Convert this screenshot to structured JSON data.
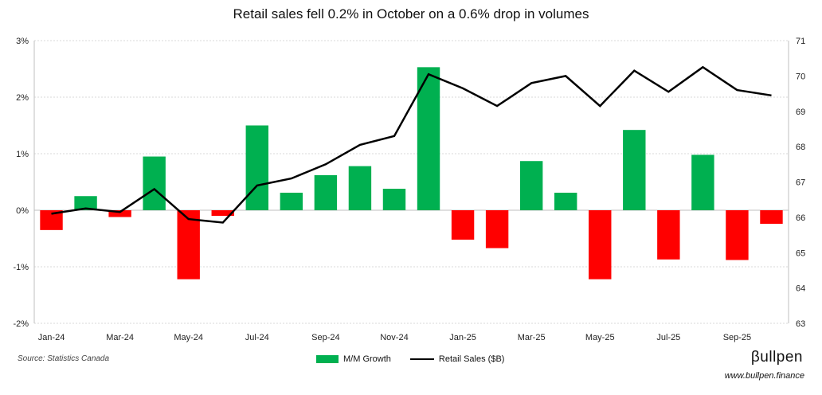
{
  "chart_data": {
    "type": "bar+line",
    "title": "Retail sales fell 0.2% in October on a 0.6% drop in volumes",
    "categories": [
      "Jan-24",
      "Feb-24",
      "Mar-24",
      "Apr-24",
      "May-24",
      "Jun-24",
      "Jul-24",
      "Aug-24",
      "Sep-24",
      "Oct-24",
      "Nov-24",
      "Dec-24",
      "Jan-25",
      "Feb-25",
      "Mar-25",
      "Apr-25",
      "May-25",
      "Jun-25",
      "Jul-25",
      "Aug-25",
      "Sep-25",
      "Oct-25"
    ],
    "x_tick_labels": [
      "Jan-24",
      "Mar-24",
      "May-24",
      "Jul-24",
      "Sep-24",
      "Nov-24",
      "Jan-25",
      "Mar-25",
      "May-25",
      "Jul-25",
      "Sep-25"
    ],
    "series": [
      {
        "name": "M/M Growth",
        "type": "bar",
        "axis": "left",
        "unit": "%",
        "values": [
          -0.35,
          0.25,
          -0.12,
          0.95,
          -1.22,
          -0.1,
          1.5,
          0.31,
          0.62,
          0.78,
          0.38,
          2.53,
          -0.52,
          -0.67,
          0.87,
          0.31,
          -1.22,
          1.42,
          -0.87,
          0.98,
          -0.88,
          -0.24
        ]
      },
      {
        "name": "Retail Sales ($B)",
        "type": "line",
        "axis": "right",
        "values": [
          66.1,
          66.25,
          66.15,
          66.8,
          65.95,
          65.85,
          66.9,
          67.1,
          67.5,
          68.05,
          68.3,
          70.05,
          69.65,
          69.15,
          69.8,
          70.0,
          69.15,
          70.15,
          69.55,
          70.25,
          69.6,
          69.45
        ]
      }
    ],
    "left_axis": {
      "min": -2,
      "max": 3,
      "ticks": [
        "-2%",
        "-1%",
        "0%",
        "1%",
        "2%",
        "3%"
      ]
    },
    "right_axis": {
      "min": 63,
      "max": 71,
      "ticks": [
        "63",
        "64",
        "65",
        "66",
        "67",
        "68",
        "69",
        "70",
        "71"
      ]
    },
    "colors": {
      "positive": "#00B050",
      "negative": "#FF0000",
      "line": "#000000",
      "grid": "#D9D9D9"
    },
    "legend": [
      "M/M Growth",
      "Retail Sales ($B)"
    ],
    "legend_position": "bottom-center"
  },
  "footer": {
    "source": "Source: Statistics Canada",
    "brand": "βullpen",
    "brand_url": "www.bullpen.finance"
  }
}
